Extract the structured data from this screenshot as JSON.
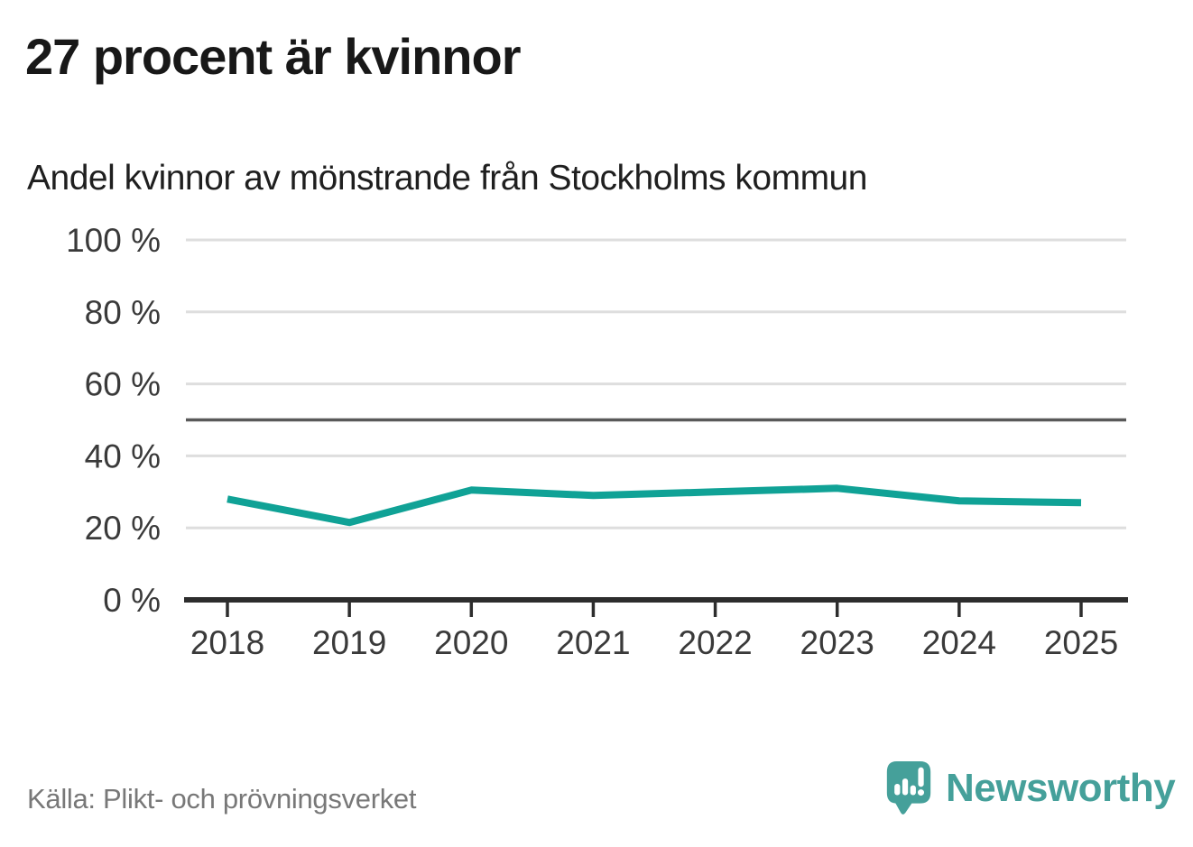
{
  "header": {
    "title": "27 procent är kvinnor",
    "subtitle": "Andel kvinnor av mönstrande från Stockholms kommun"
  },
  "chart_data": {
    "type": "line",
    "title": "27 procent är kvinnor",
    "subtitle": "Andel kvinnor av mönstrande från Stockholms kommun",
    "x": [
      "2018",
      "2019",
      "2020",
      "2021",
      "2022",
      "2023",
      "2024",
      "2025"
    ],
    "series": [
      {
        "name": "Andel kvinnor av mönstrande, Stockholms kommun",
        "values": [
          28,
          21.5,
          30.5,
          29,
          30,
          31,
          27.5,
          27
        ]
      }
    ],
    "unit": "%",
    "xlabel": "",
    "ylabel": "",
    "ylim": [
      0,
      100
    ],
    "yticks": [
      0,
      20,
      40,
      60,
      80,
      100
    ],
    "ytick_labels": [
      "0 %",
      "20 %",
      "40 %",
      "60 %",
      "80 %",
      "100 %"
    ],
    "reference_line": 50,
    "grid": true,
    "legend_position": "none"
  },
  "footer": {
    "source": "Källa: Plikt- och prövningsverket",
    "brand": "Newsworthy"
  },
  "icons": {
    "logo": "newsworthy-speech-bubble-with-bar-chart-and-exclamation"
  },
  "colors": {
    "line": "#10a296",
    "reference_line": "#595959",
    "grid": "#dedede",
    "axis": "#2d2d2d",
    "tick_label": "#3a3a3a",
    "title": "#181818",
    "source_text": "#787878",
    "brand_teal": "#45a09a"
  }
}
